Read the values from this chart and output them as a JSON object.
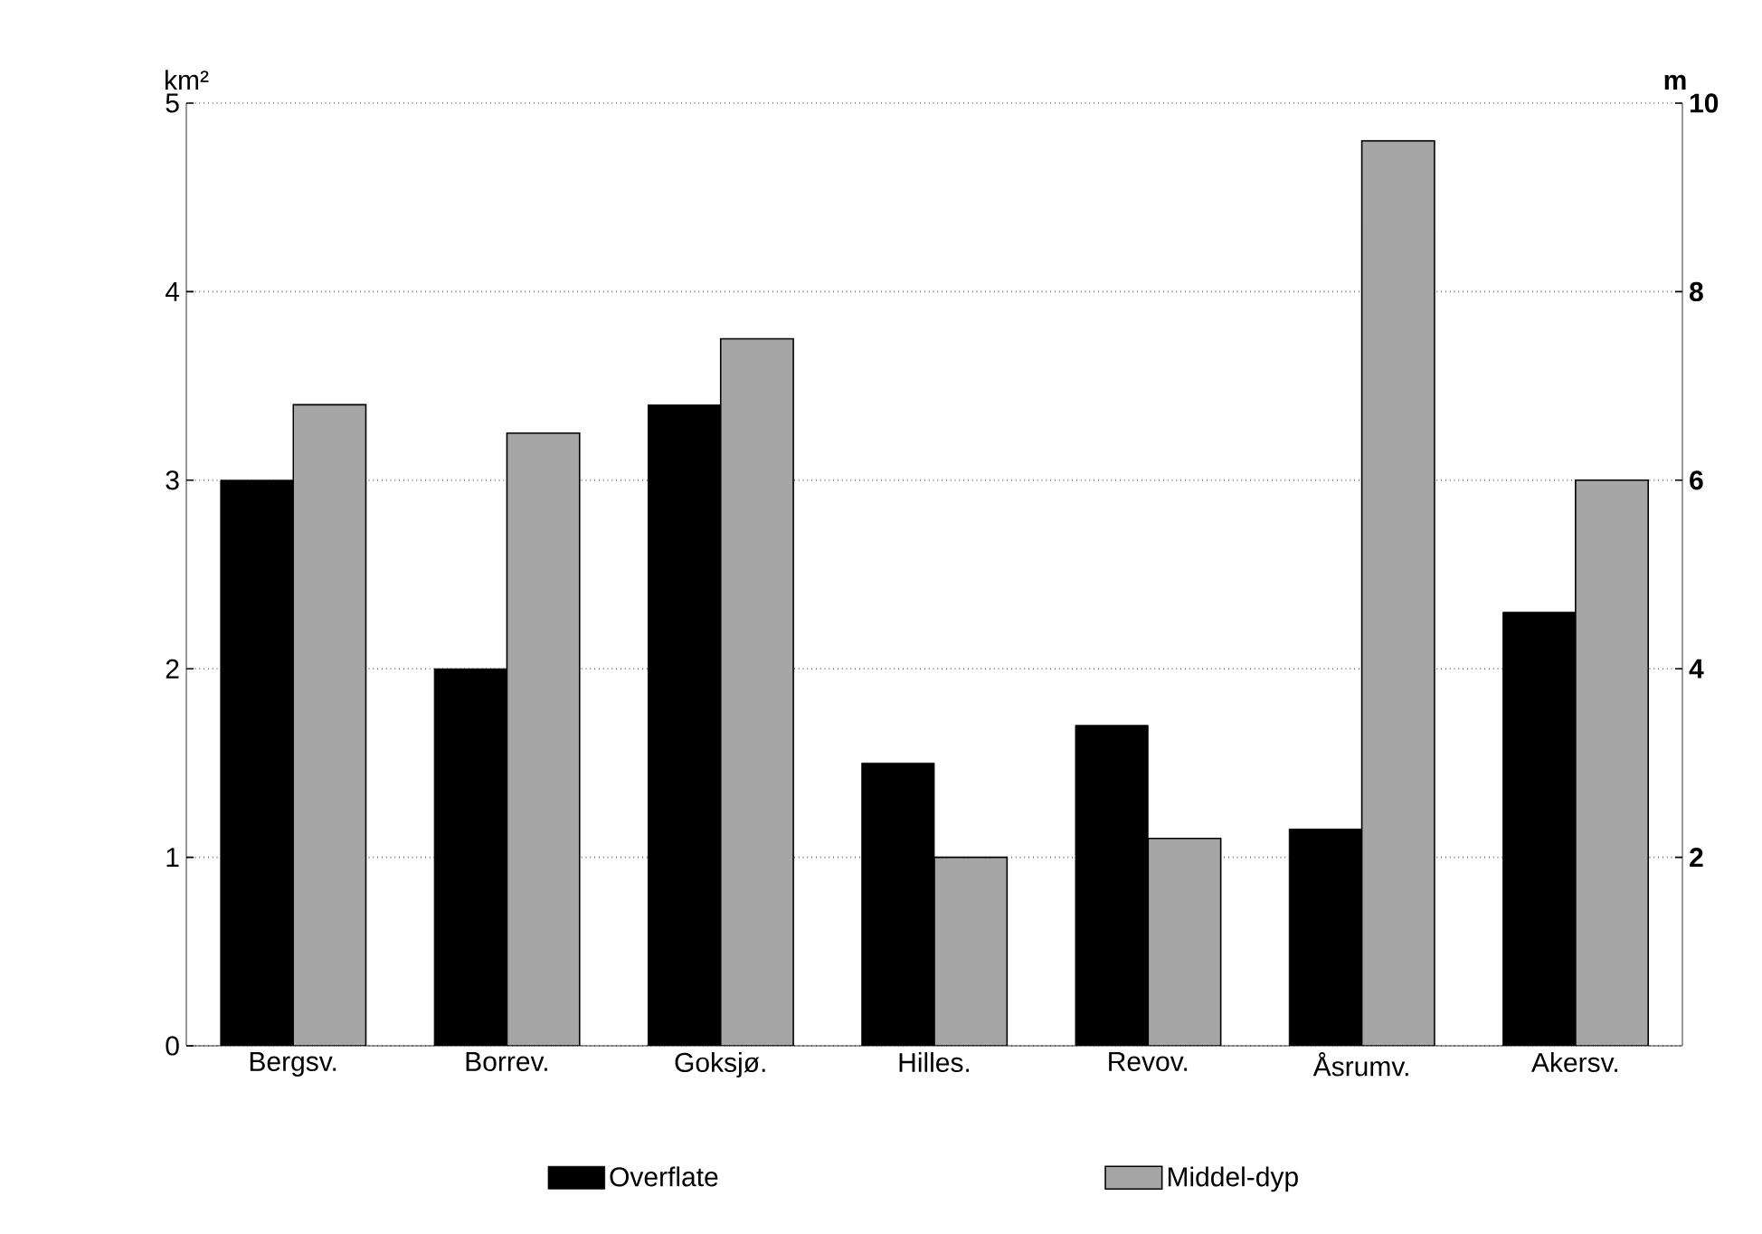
{
  "chart_data": {
    "type": "bar",
    "categories": [
      "Bergsv.",
      "Borrev.",
      "Goksjø.",
      "Hilles.",
      "Revov.",
      "Åsrumv.",
      "Akersv."
    ],
    "series": [
      {
        "name": "Overflate",
        "color": "#000000",
        "values": [
          3.0,
          2.0,
          3.4,
          1.5,
          1.7,
          1.15,
          2.3
        ]
      },
      {
        "name": "Middel-dyp",
        "color": "#a6a6a6",
        "axis": "y2",
        "values": [
          6.8,
          6.5,
          7.5,
          2.0,
          2.2,
          9.6,
          6.0
        ]
      }
    ],
    "ylabel": "km²",
    "y2label": "m",
    "ylim": [
      0,
      5
    ],
    "yticks": [
      0,
      1,
      2,
      3,
      4,
      5
    ],
    "y2lim": [
      0,
      10
    ],
    "y2ticks": [
      2,
      4,
      6,
      8,
      10
    ],
    "grid": "y",
    "legend": "bottom"
  }
}
